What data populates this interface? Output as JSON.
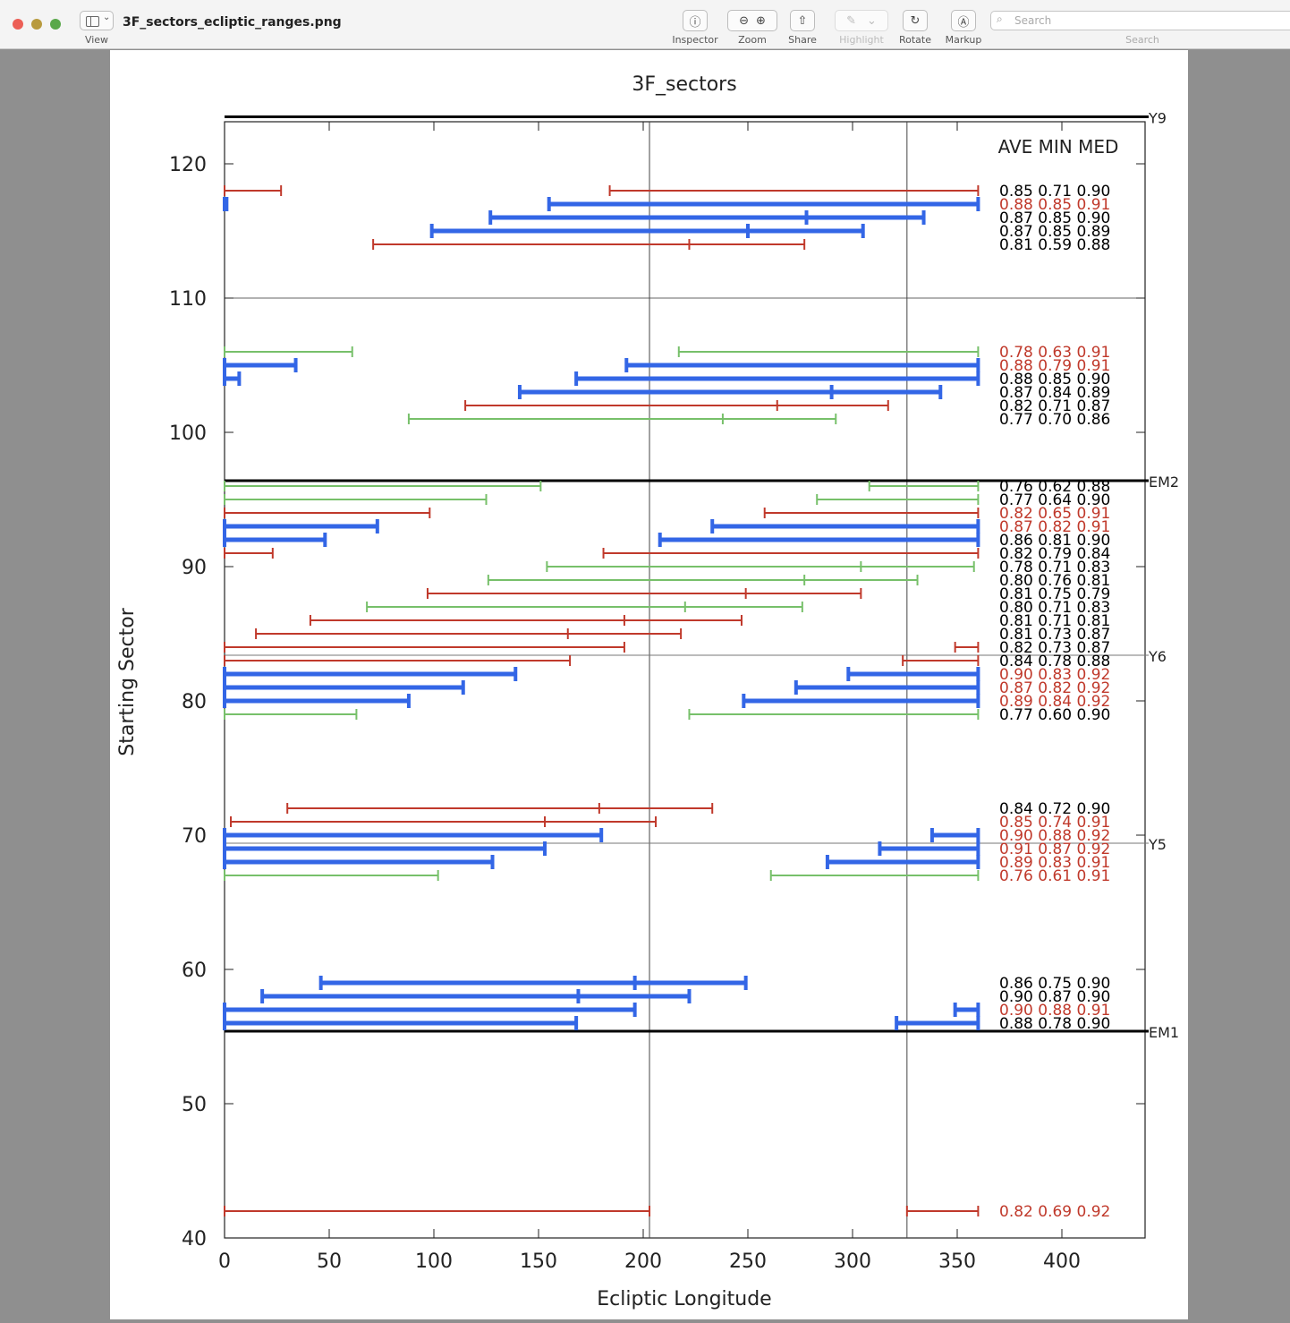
{
  "window": {
    "title": "3F_sectors_ecliptic_ranges.png",
    "view_label": "View",
    "toolbar": {
      "inspector": "Inspector",
      "zoom": "Zoom",
      "share": "Share",
      "highlight": "Highlight",
      "rotate": "Rotate",
      "markup": "Markup",
      "search_label": "Search",
      "search_placeholder": "Search"
    }
  },
  "chart_data": {
    "type": "range",
    "title": "3F_sectors",
    "xlabel": "Ecliptic Longitude",
    "ylabel": "Starting Sector",
    "xlim": [
      0,
      440
    ],
    "ylim": [
      40,
      123
    ],
    "xticks": [
      0,
      50,
      100,
      150,
      200,
      250,
      300,
      350,
      400
    ],
    "yticks": [
      40,
      50,
      60,
      70,
      80,
      90,
      100,
      110,
      120
    ],
    "grid": false,
    "vertical_lines": [
      203,
      326
    ],
    "stat_header": "AVE MIN MED",
    "colors": {
      "red": "#c0392b",
      "blue": "#3366e6",
      "green": "#77c06a",
      "black": "#000000"
    },
    "milestones": [
      {
        "label": "Y9",
        "y": 123.5,
        "style": "thick"
      },
      {
        "label": "EM2",
        "y": 96.4,
        "style": "thick"
      },
      {
        "label": "Y6",
        "y": 83.4,
        "style": "thin"
      },
      {
        "label": "Y5",
        "y": 69.4,
        "style": "thin"
      },
      {
        "label": "EM1",
        "y": 55.4,
        "style": "thick"
      }
    ],
    "regions": [
      {
        "y1": 110,
        "y2": 123.5
      },
      {
        "y1": 96.4,
        "y2": 110
      }
    ],
    "rows": [
      {
        "y": 118,
        "color": "red",
        "segments": [
          [
            0,
            27
          ],
          [
            184,
            360
          ]
        ],
        "ticks": [],
        "stats": "0.85 0.71 0.90",
        "stats_color": "black"
      },
      {
        "y": 117,
        "color": "blue",
        "segments": [
          [
            0,
            1
          ],
          [
            155,
            360
          ]
        ],
        "ticks": [],
        "stats": "0.88 0.85 0.91",
        "stats_color": "red"
      },
      {
        "y": 116,
        "color": "blue",
        "segments": [
          [
            127,
            334
          ]
        ],
        "ticks": [
          278
        ],
        "stats": "0.87 0.85 0.90",
        "stats_color": "black"
      },
      {
        "y": 115,
        "color": "blue",
        "segments": [
          [
            99,
            305
          ]
        ],
        "ticks": [
          250
        ],
        "stats": "0.87 0.85 0.89",
        "stats_color": "black"
      },
      {
        "y": 114,
        "color": "red",
        "segments": [
          [
            71,
            277
          ]
        ],
        "ticks": [
          222
        ],
        "stats": "0.81 0.59 0.88",
        "stats_color": "black"
      },
      {
        "y": 106,
        "color": "green",
        "segments": [
          [
            0,
            61
          ],
          [
            217,
            360
          ]
        ],
        "ticks": [],
        "stats": "0.78 0.63 0.91",
        "stats_color": "red"
      },
      {
        "y": 105,
        "color": "blue",
        "segments": [
          [
            0,
            34
          ],
          [
            192,
            360
          ]
        ],
        "ticks": [],
        "stats": "0.88 0.79 0.91",
        "stats_color": "red"
      },
      {
        "y": 104,
        "color": "blue",
        "segments": [
          [
            0,
            7
          ],
          [
            168,
            360
          ]
        ],
        "ticks": [],
        "stats": "0.88 0.85 0.90",
        "stats_color": "black"
      },
      {
        "y": 103,
        "color": "blue",
        "segments": [
          [
            141,
            342
          ]
        ],
        "ticks": [
          290
        ],
        "stats": "0.87 0.84 0.89",
        "stats_color": "black"
      },
      {
        "y": 102,
        "color": "red",
        "segments": [
          [
            115,
            317
          ]
        ],
        "ticks": [
          264
        ],
        "stats": "0.82 0.71 0.87",
        "stats_color": "black"
      },
      {
        "y": 101,
        "color": "green",
        "segments": [
          [
            88,
            292
          ]
        ],
        "ticks": [
          238
        ],
        "stats": "0.77 0.70 0.86",
        "stats_color": "black"
      },
      {
        "y": 96,
        "color": "green",
        "segments": [
          [
            0,
            151
          ],
          [
            308,
            360
          ]
        ],
        "ticks": [],
        "stats": "0.76 0.62 0.88",
        "stats_color": "black"
      },
      {
        "y": 95,
        "color": "green",
        "segments": [
          [
            0,
            125
          ],
          [
            283,
            360
          ]
        ],
        "ticks": [],
        "stats": "0.77 0.64 0.90",
        "stats_color": "black"
      },
      {
        "y": 94,
        "color": "red",
        "segments": [
          [
            0,
            98
          ],
          [
            258,
            360
          ]
        ],
        "ticks": [],
        "stats": "0.82 0.65 0.91",
        "stats_color": "red"
      },
      {
        "y": 93,
        "color": "blue",
        "segments": [
          [
            0,
            73
          ],
          [
            233,
            360
          ]
        ],
        "ticks": [],
        "stats": "0.87 0.82 0.91",
        "stats_color": "red"
      },
      {
        "y": 92,
        "color": "blue",
        "segments": [
          [
            0,
            48
          ],
          [
            208,
            360
          ]
        ],
        "ticks": [],
        "stats": "0.86 0.81 0.90",
        "stats_color": "black"
      },
      {
        "y": 91,
        "color": "red",
        "segments": [
          [
            0,
            23
          ],
          [
            181,
            360
          ]
        ],
        "ticks": [],
        "stats": "0.82 0.79 0.84",
        "stats_color": "black"
      },
      {
        "y": 90,
        "color": "green",
        "segments": [
          [
            154,
            358
          ]
        ],
        "ticks": [
          304
        ],
        "stats": "0.78 0.71 0.83",
        "stats_color": "black"
      },
      {
        "y": 89,
        "color": "green",
        "segments": [
          [
            126,
            331
          ]
        ],
        "ticks": [
          277
        ],
        "stats": "0.80 0.76 0.81",
        "stats_color": "black"
      },
      {
        "y": 88,
        "color": "red",
        "segments": [
          [
            97,
            304
          ]
        ],
        "ticks": [
          249
        ],
        "stats": "0.81 0.75 0.79",
        "stats_color": "black"
      },
      {
        "y": 87,
        "color": "green",
        "segments": [
          [
            68,
            276
          ]
        ],
        "ticks": [
          220
        ],
        "stats": "0.80 0.71 0.83",
        "stats_color": "black"
      },
      {
        "y": 86,
        "color": "red",
        "segments": [
          [
            41,
            247
          ]
        ],
        "ticks": [
          191
        ],
        "stats": "0.81 0.71 0.81",
        "stats_color": "black"
      },
      {
        "y": 85,
        "color": "red",
        "segments": [
          [
            15,
            218
          ]
        ],
        "ticks": [
          164
        ],
        "stats": "0.81 0.73 0.87",
        "stats_color": "black"
      },
      {
        "y": 84,
        "color": "red",
        "segments": [
          [
            0,
            191
          ],
          [
            349,
            360
          ]
        ],
        "ticks": [],
        "stats": "0.82 0.73 0.87",
        "stats_color": "black"
      },
      {
        "y": 83,
        "color": "red",
        "segments": [
          [
            0,
            165
          ],
          [
            324,
            360
          ]
        ],
        "ticks": [],
        "stats": "0.84 0.78 0.88",
        "stats_color": "black"
      },
      {
        "y": 82,
        "color": "blue",
        "segments": [
          [
            0,
            139
          ],
          [
            298,
            360
          ]
        ],
        "ticks": [],
        "stats": "0.90 0.83 0.92",
        "stats_color": "red"
      },
      {
        "y": 81,
        "color": "blue",
        "segments": [
          [
            0,
            114
          ],
          [
            273,
            360
          ]
        ],
        "ticks": [],
        "stats": "0.87 0.82 0.92",
        "stats_color": "red"
      },
      {
        "y": 80,
        "color": "blue",
        "segments": [
          [
            0,
            88
          ],
          [
            248,
            360
          ]
        ],
        "ticks": [],
        "stats": "0.89 0.84 0.92",
        "stats_color": "red"
      },
      {
        "y": 79,
        "color": "green",
        "segments": [
          [
            0,
            63
          ],
          [
            222,
            360
          ]
        ],
        "ticks": [],
        "stats": "0.77 0.60 0.90",
        "stats_color": "black"
      },
      {
        "y": 72,
        "color": "red",
        "segments": [
          [
            30,
            233
          ]
        ],
        "ticks": [
          179
        ],
        "stats": "0.84 0.72 0.90",
        "stats_color": "black"
      },
      {
        "y": 71,
        "color": "red",
        "segments": [
          [
            3,
            206
          ]
        ],
        "ticks": [
          153
        ],
        "stats": "0.85 0.74 0.91",
        "stats_color": "red"
      },
      {
        "y": 70,
        "color": "blue",
        "segments": [
          [
            0,
            180
          ],
          [
            338,
            360
          ]
        ],
        "ticks": [],
        "stats": "0.90 0.88 0.92",
        "stats_color": "red"
      },
      {
        "y": 69,
        "color": "blue",
        "segments": [
          [
            0,
            153
          ],
          [
            313,
            360
          ]
        ],
        "ticks": [],
        "stats": "0.91 0.87 0.92",
        "stats_color": "red"
      },
      {
        "y": 68,
        "color": "blue",
        "segments": [
          [
            0,
            128
          ],
          [
            288,
            360
          ]
        ],
        "ticks": [],
        "stats": "0.89 0.83 0.91",
        "stats_color": "red"
      },
      {
        "y": 67,
        "color": "green",
        "segments": [
          [
            0,
            102
          ],
          [
            261,
            360
          ]
        ],
        "ticks": [],
        "stats": "0.76 0.61 0.91",
        "stats_color": "red"
      },
      {
        "y": 59,
        "color": "blue",
        "segments": [
          [
            46,
            249
          ]
        ],
        "ticks": [
          196
        ],
        "stats": "0.86 0.75 0.90",
        "stats_color": "black"
      },
      {
        "y": 58,
        "color": "blue",
        "segments": [
          [
            18,
            222
          ]
        ],
        "ticks": [
          169
        ],
        "stats": "0.90 0.87 0.90",
        "stats_color": "black"
      },
      {
        "y": 57,
        "color": "blue",
        "segments": [
          [
            0,
            196
          ],
          [
            349,
            360
          ]
        ],
        "ticks": [],
        "stats": "0.90 0.88 0.91",
        "stats_color": "red"
      },
      {
        "y": 56,
        "color": "blue",
        "segments": [
          [
            0,
            168
          ],
          [
            321,
            360
          ]
        ],
        "ticks": [],
        "stats": "0.88 0.78 0.90",
        "stats_color": "black"
      },
      {
        "y": 42,
        "color": "red",
        "segments": [
          [
            0,
            203
          ],
          [
            326,
            360
          ]
        ],
        "ticks": [],
        "stats": "0.82 0.69 0.92",
        "stats_color": "red"
      }
    ]
  }
}
